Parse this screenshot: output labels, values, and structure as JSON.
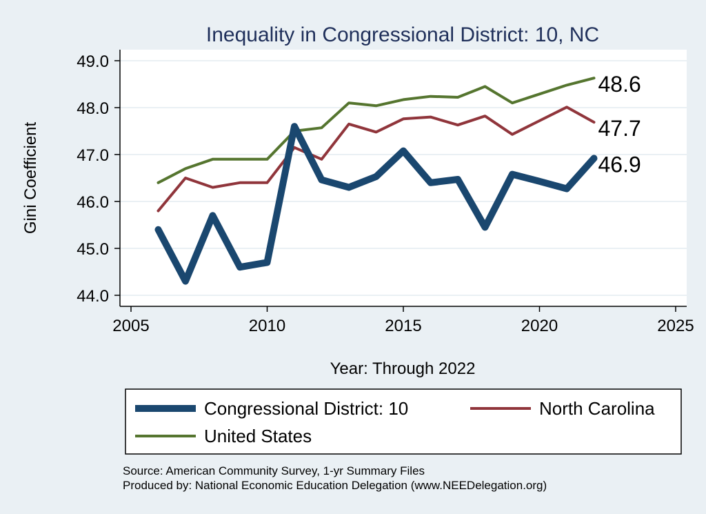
{
  "chart_data": {
    "type": "line",
    "title": "Inequality in Congressional District:  10, NC",
    "xlabel": "Year: Through 2022",
    "ylabel": "Gini Coefficient",
    "xlim": [
      2005,
      2025
    ],
    "ylim": [
      44.0,
      49.0
    ],
    "x_ticks": [
      "2005",
      "2010",
      "2015",
      "2020",
      "2025"
    ],
    "y_ticks": [
      "44.0",
      "45.0",
      "46.0",
      "47.0",
      "48.0",
      "49.0"
    ],
    "x": [
      2006,
      2007,
      2008,
      2009,
      2010,
      2011,
      2012,
      2013,
      2014,
      2015,
      2016,
      2017,
      2018,
      2019,
      2020,
      2021,
      2022
    ],
    "series": [
      {
        "name": "Congressional District:  10",
        "color": "#1a476f",
        "values": [
          45.4,
          44.3,
          45.7,
          44.6,
          44.7,
          47.6,
          46.46,
          46.3,
          46.53,
          47.08,
          46.4,
          46.47,
          45.45,
          46.58,
          46.43,
          46.27,
          46.92
        ],
        "end_label": "46.9"
      },
      {
        "name": "North Carolina",
        "color": "#90353b",
        "values": [
          45.8,
          46.5,
          46.3,
          46.4,
          46.4,
          47.15,
          46.9,
          47.65,
          47.48,
          47.76,
          47.8,
          47.63,
          47.82,
          47.43,
          47.72,
          48.01,
          47.69
        ],
        "end_label": "47.7"
      },
      {
        "name": "United States",
        "color": "#55752f",
        "values": [
          46.4,
          46.7,
          46.9,
          46.9,
          46.9,
          47.5,
          47.57,
          48.1,
          48.04,
          48.17,
          48.24,
          48.22,
          48.45,
          48.1,
          48.29,
          48.48,
          48.63
        ],
        "end_label": "48.6"
      }
    ],
    "legend": {
      "position": "bottom",
      "entries": [
        "Congressional District:  10",
        "North Carolina",
        "United States"
      ]
    }
  },
  "source_line": "Source: American Community Survey, 1-yr Summary Files",
  "produced_line": "Produced by: National Economic Education Delegation (www.NEEDelegation.org)"
}
